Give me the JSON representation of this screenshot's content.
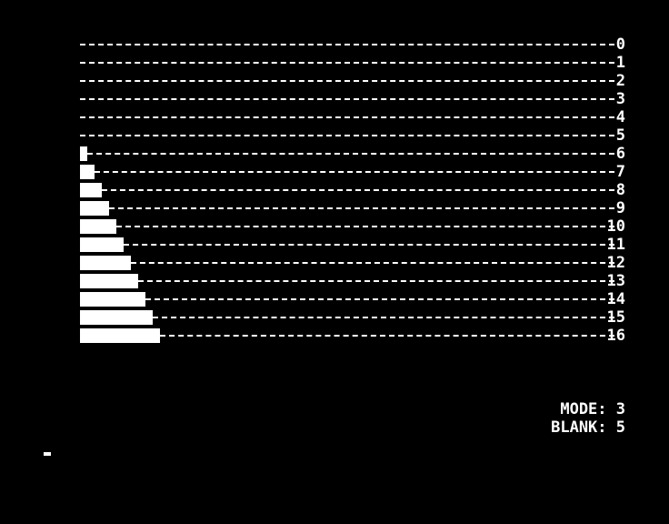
{
  "screen": {
    "background": "#000000",
    "foreground": "#ffffff"
  },
  "chart_data": {
    "type": "bar",
    "orientation": "horizontal",
    "categories": [
      "0",
      "1",
      "2",
      "3",
      "4",
      "5",
      "6",
      "7",
      "8",
      "9",
      "10",
      "11",
      "12",
      "13",
      "14",
      "15",
      "16"
    ],
    "values": [
      0,
      0,
      0,
      0,
      0,
      0,
      1,
      2,
      3,
      4,
      5,
      6,
      7,
      8,
      9,
      10,
      11
    ],
    "title": "",
    "xlabel": "",
    "ylabel": "",
    "grid": "dashed row guides",
    "legend": "none"
  },
  "status": {
    "mode_text": "MODE: 3",
    "blank_text": "BLANK: 5"
  },
  "cursor": {
    "icon": "block-cursor"
  }
}
